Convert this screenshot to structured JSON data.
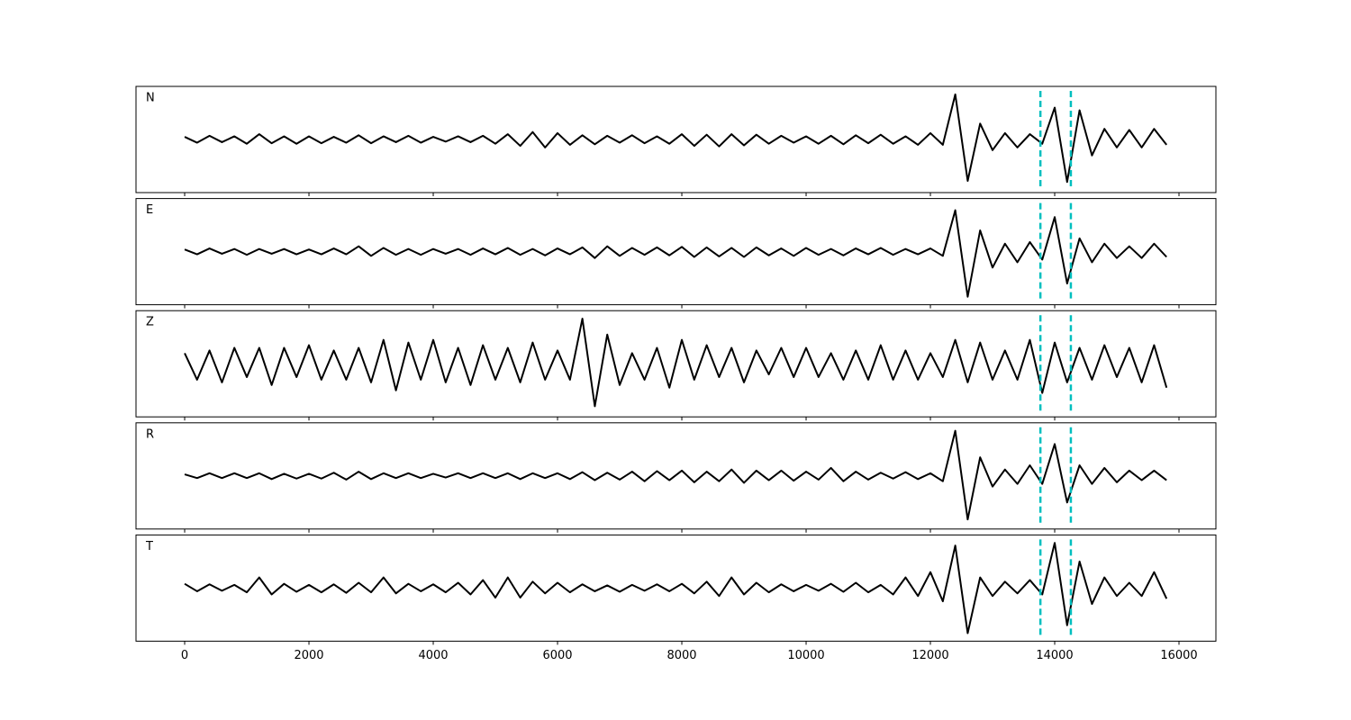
{
  "chart_data": {
    "type": "line",
    "layout": "stacked-panels",
    "x": [
      0,
      200,
      400,
      600,
      800,
      1000,
      1200,
      1400,
      1600,
      1800,
      2000,
      2200,
      2400,
      2600,
      2800,
      3000,
      3200,
      3400,
      3600,
      3800,
      4000,
      4200,
      4400,
      4600,
      4800,
      5000,
      5200,
      5400,
      5600,
      5800,
      6000,
      6200,
      6400,
      6600,
      6800,
      7000,
      7200,
      7400,
      7600,
      7800,
      8000,
      8200,
      8400,
      8600,
      8800,
      9000,
      9200,
      9400,
      9600,
      9800,
      10000,
      10200,
      10400,
      10600,
      10800,
      11000,
      11200,
      11400,
      11600,
      11800,
      12000,
      12200,
      12400,
      12600,
      12800,
      13000,
      13200,
      13400,
      13600,
      13800,
      14000,
      14200,
      14400,
      14600,
      14800,
      15000,
      15200,
      15400,
      15600,
      15800
    ],
    "series": [
      {
        "name": "N",
        "color": "#000000",
        "values": [
          0.05,
          -0.06,
          0.07,
          -0.05,
          0.06,
          -0.08,
          0.1,
          -0.07,
          0.06,
          -0.08,
          0.06,
          -0.07,
          0.05,
          -0.06,
          0.08,
          -0.07,
          0.06,
          -0.05,
          0.07,
          -0.06,
          0.05,
          -0.04,
          0.06,
          -0.05,
          0.07,
          -0.08,
          0.1,
          -0.12,
          0.14,
          -0.15,
          0.12,
          -0.1,
          0.08,
          -0.09,
          0.07,
          -0.06,
          0.08,
          -0.07,
          0.06,
          -0.08,
          0.1,
          -0.12,
          0.09,
          -0.13,
          0.1,
          -0.11,
          0.09,
          -0.08,
          0.07,
          -0.06,
          0.06,
          -0.08,
          0.07,
          -0.09,
          0.08,
          -0.07,
          0.09,
          -0.08,
          0.06,
          -0.1,
          0.12,
          -0.1,
          0.85,
          -0.78,
          0.3,
          -0.2,
          0.12,
          -0.15,
          0.1,
          -0.08,
          0.6,
          -0.8,
          0.55,
          -0.3,
          0.2,
          -0.15,
          0.18,
          -0.15,
          0.2,
          -0.1
        ]
      },
      {
        "name": "E",
        "color": "#000000",
        "values": [
          0.04,
          -0.05,
          0.06,
          -0.04,
          0.05,
          -0.06,
          0.05,
          -0.04,
          0.05,
          -0.05,
          0.04,
          -0.05,
          0.06,
          -0.05,
          0.1,
          -0.08,
          0.07,
          -0.06,
          0.05,
          -0.06,
          0.05,
          -0.04,
          0.05,
          -0.06,
          0.06,
          -0.05,
          0.07,
          -0.06,
          0.05,
          -0.07,
          0.06,
          -0.05,
          0.08,
          -0.12,
          0.1,
          -0.08,
          0.07,
          -0.06,
          0.08,
          -0.07,
          0.09,
          -0.1,
          0.08,
          -0.09,
          0.07,
          -0.1,
          0.08,
          -0.07,
          0.06,
          -0.08,
          0.07,
          -0.06,
          0.05,
          -0.07,
          0.06,
          -0.05,
          0.07,
          -0.06,
          0.05,
          -0.05,
          0.06,
          -0.08,
          0.78,
          -0.85,
          0.4,
          -0.3,
          0.15,
          -0.2,
          0.18,
          -0.15,
          0.65,
          -0.6,
          0.25,
          -0.2,
          0.15,
          -0.12,
          0.1,
          -0.12,
          0.15,
          -0.1
        ]
      },
      {
        "name": "Z",
        "color": "#000000",
        "values": [
          0.2,
          -0.3,
          0.25,
          -0.35,
          0.3,
          -0.25,
          0.3,
          -0.4,
          0.3,
          -0.25,
          0.35,
          -0.3,
          0.25,
          -0.3,
          0.3,
          -0.35,
          0.45,
          -0.5,
          0.4,
          -0.3,
          0.45,
          -0.35,
          0.3,
          -0.4,
          0.35,
          -0.3,
          0.3,
          -0.35,
          0.4,
          -0.3,
          0.25,
          -0.3,
          0.85,
          -0.8,
          0.55,
          -0.4,
          0.2,
          -0.3,
          0.3,
          -0.45,
          0.45,
          -0.3,
          0.35,
          -0.25,
          0.3,
          -0.35,
          0.25,
          -0.2,
          0.3,
          -0.25,
          0.3,
          -0.25,
          0.2,
          -0.3,
          0.25,
          -0.3,
          0.35,
          -0.3,
          0.25,
          -0.3,
          0.2,
          -0.25,
          0.45,
          -0.35,
          0.4,
          -0.3,
          0.25,
          -0.3,
          0.45,
          -0.55,
          0.4,
          -0.35,
          0.3,
          -0.3,
          0.35,
          -0.25,
          0.3,
          -0.35,
          0.35,
          -0.45
        ]
      },
      {
        "name": "R",
        "color": "#000000",
        "values": [
          0.03,
          -0.04,
          0.05,
          -0.04,
          0.05,
          -0.04,
          0.05,
          -0.06,
          0.04,
          -0.05,
          0.04,
          -0.05,
          0.06,
          -0.07,
          0.08,
          -0.06,
          0.05,
          -0.04,
          0.05,
          -0.04,
          0.04,
          -0.03,
          0.05,
          -0.04,
          0.05,
          -0.04,
          0.05,
          -0.06,
          0.05,
          -0.04,
          0.05,
          -0.06,
          0.07,
          -0.08,
          0.06,
          -0.07,
          0.08,
          -0.1,
          0.09,
          -0.08,
          0.1,
          -0.12,
          0.08,
          -0.1,
          0.12,
          -0.13,
          0.1,
          -0.08,
          0.1,
          -0.09,
          0.08,
          -0.07,
          0.15,
          -0.1,
          0.08,
          -0.07,
          0.06,
          -0.05,
          0.07,
          -0.06,
          0.05,
          -0.1,
          0.85,
          -0.82,
          0.35,
          -0.2,
          0.12,
          -0.15,
          0.2,
          -0.15,
          0.6,
          -0.5,
          0.2,
          -0.15,
          0.15,
          -0.12,
          0.1,
          -0.08,
          0.1,
          -0.08
        ]
      },
      {
        "name": "T",
        "color": "#000000",
        "values": [
          0.08,
          -0.06,
          0.07,
          -0.05,
          0.06,
          -0.08,
          0.2,
          -0.12,
          0.08,
          -0.07,
          0.06,
          -0.08,
          0.07,
          -0.09,
          0.1,
          -0.08,
          0.2,
          -0.1,
          0.08,
          -0.06,
          0.07,
          -0.08,
          0.1,
          -0.12,
          0.15,
          -0.18,
          0.2,
          -0.18,
          0.12,
          -0.1,
          0.1,
          -0.08,
          0.07,
          -0.06,
          0.05,
          -0.07,
          0.06,
          -0.05,
          0.07,
          -0.06,
          0.08,
          -0.1,
          0.12,
          -0.15,
          0.2,
          -0.12,
          0.1,
          -0.08,
          0.07,
          -0.06,
          0.06,
          -0.05,
          0.08,
          -0.07,
          0.1,
          -0.08,
          0.06,
          -0.12,
          0.2,
          -0.15,
          0.3,
          -0.25,
          0.8,
          -0.85,
          0.2,
          -0.15,
          0.12,
          -0.1,
          0.15,
          -0.12,
          0.85,
          -0.7,
          0.5,
          -0.3,
          0.2,
          -0.15,
          0.1,
          -0.15,
          0.3,
          -0.2
        ]
      }
    ],
    "vlines": [
      13770,
      14260
    ],
    "vline_color": "#00bfbf",
    "xlim": [
      -783,
      16594
    ],
    "xticks": [
      0,
      2000,
      4000,
      6000,
      8000,
      10000,
      12000,
      14000,
      16000
    ],
    "ylim": [
      -1,
      1
    ]
  }
}
